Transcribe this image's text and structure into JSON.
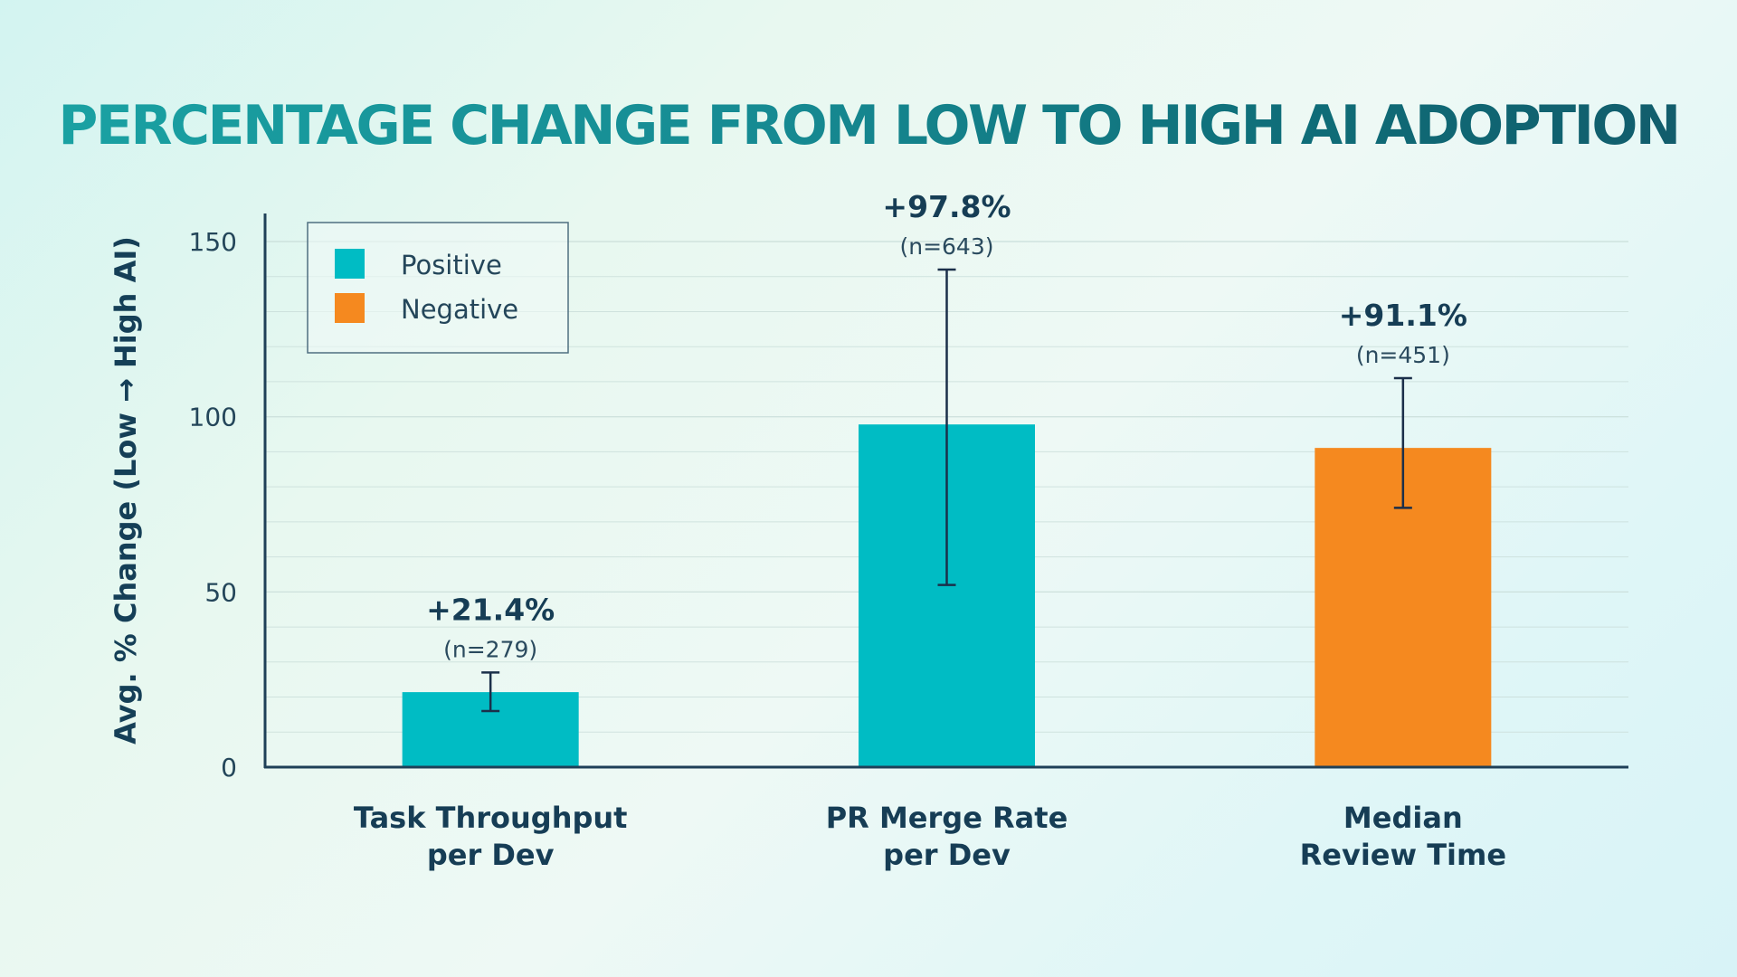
{
  "chart_data": {
    "type": "bar",
    "title": "PERCENTAGE CHANGE FROM LOW TO HIGH AI ADOPTION",
    "xlabel": "",
    "ylabel": "Avg. % Change (Low → High AI)",
    "ylim": [
      0,
      155
    ],
    "yticks": [
      0,
      50,
      100,
      150
    ],
    "grid": true,
    "legend": {
      "placement": "top-left",
      "entries": [
        {
          "label": "Positive",
          "color": "#00bcc4"
        },
        {
          "label": "Negative",
          "color": "#f5891f"
        }
      ]
    },
    "categories": [
      {
        "line1": "Task Throughput",
        "line2": "per Dev"
      },
      {
        "line1": "PR Merge Rate",
        "line2": "per Dev"
      },
      {
        "line1": "Median",
        "line2": "Review Time"
      }
    ],
    "values": [
      21.4,
      97.8,
      91.1
    ],
    "sentiment": [
      "Positive",
      "Positive",
      "Negative"
    ],
    "error_low": [
      16,
      52,
      74
    ],
    "error_high": [
      27,
      142,
      111
    ],
    "value_labels": [
      "+21.4%",
      "+97.8%",
      "+91.1%"
    ],
    "n_labels": [
      "(n=279)",
      "(n=643)",
      "(n=451)"
    ]
  }
}
